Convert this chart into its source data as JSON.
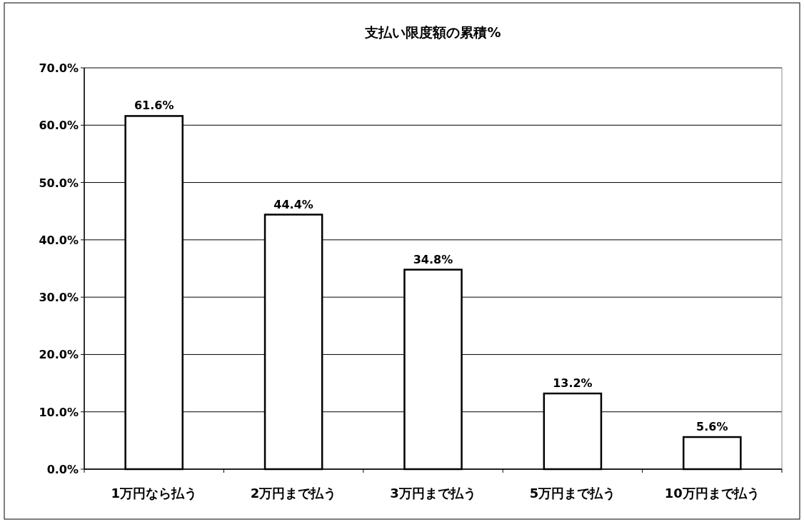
{
  "chart_data": {
    "type": "bar",
    "title": "支払い限度額の累積%",
    "categories": [
      "1万円なら払う",
      "2万円まで払う",
      "3万円まで払う",
      "5万円まで払う",
      "10万円まで払う"
    ],
    "values": [
      61.6,
      44.4,
      34.8,
      13.2,
      5.6
    ],
    "value_labels": [
      "61.6%",
      "44.4%",
      "34.8%",
      "13.2%",
      "5.6%"
    ],
    "color": "#ffffff",
    "ylim": [
      0,
      70
    ],
    "yticks": [
      {
        "value": 0,
        "label": "0.0%"
      },
      {
        "value": 10,
        "label": "10.0%"
      },
      {
        "value": 20,
        "label": "20.0%"
      },
      {
        "value": 30,
        "label": "30.0%"
      },
      {
        "value": 40,
        "label": "40.0%"
      },
      {
        "value": 50,
        "label": "50.0%"
      },
      {
        "value": 60,
        "label": "60.0%"
      },
      {
        "value": 70,
        "label": "70.0%"
      }
    ],
    "grid": "y"
  }
}
